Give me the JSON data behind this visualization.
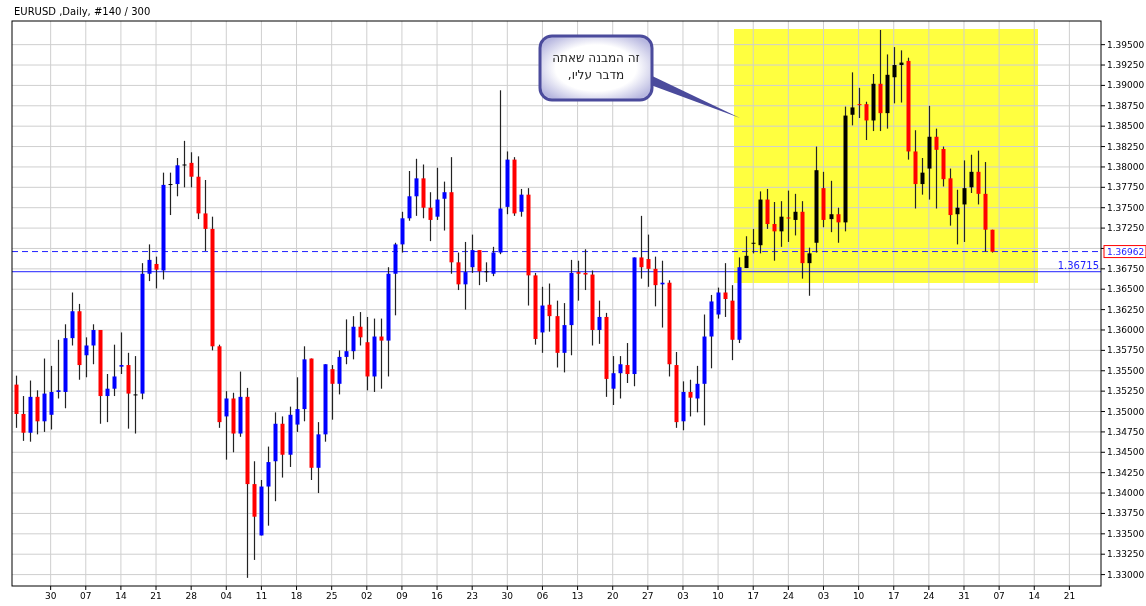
{
  "chart_data": {
    "type": "candlestick",
    "title": "EURUSD ,Daily, #140 / 300",
    "categories": [
      null,
      null,
      null,
      null,
      null,
      "30",
      null,
      null,
      null,
      null,
      "07",
      null,
      null,
      null,
      null,
      "14",
      null,
      null,
      null,
      null,
      "21",
      null,
      null,
      null,
      null,
      "28",
      null,
      null,
      null,
      null,
      "04",
      null,
      null,
      null,
      null,
      "11",
      null,
      null,
      null,
      null,
      "18",
      null,
      null,
      null,
      null,
      "25",
      null,
      null,
      null,
      null,
      "02",
      null,
      null,
      null,
      null,
      "09",
      null,
      null,
      null,
      null,
      "16",
      null,
      null,
      null,
      null,
      "23",
      null,
      null,
      null,
      null,
      "30",
      null,
      null,
      null,
      null,
      "06",
      null,
      null,
      null,
      null,
      "13",
      null,
      null,
      null,
      null,
      "20",
      null,
      null,
      null,
      null,
      "27",
      null,
      null,
      null,
      null,
      "03",
      null,
      null,
      null,
      null,
      "10",
      null,
      null,
      null,
      null,
      "17",
      null,
      null,
      null,
      null,
      "24",
      null,
      null,
      null,
      null,
      "03",
      null,
      null,
      null,
      null,
      "10",
      null,
      null,
      null,
      null,
      "17",
      null,
      null,
      null,
      null,
      "24",
      null,
      null,
      null,
      null,
      "31",
      null,
      null,
      null,
      null,
      "07",
      null,
      null,
      null,
      null,
      "14",
      null,
      null,
      null,
      null,
      "21",
      null,
      null,
      null,
      null
    ],
    "ohlc": [
      [
        1.3533,
        1.3544,
        1.348,
        1.3497
      ],
      [
        1.3497,
        1.3519,
        1.3464,
        1.3474
      ],
      [
        1.3474,
        1.3538,
        1.3463,
        1.3518
      ],
      [
        1.3518,
        1.3526,
        1.3472,
        1.3488
      ],
      [
        1.3488,
        1.3565,
        1.3475,
        1.3522
      ],
      [
        1.3496,
        1.3556,
        1.3478,
        1.3524
      ],
      [
        1.3524,
        1.3588,
        1.3516,
        1.3526
      ],
      [
        1.3524,
        1.3607,
        1.3504,
        1.359
      ],
      [
        1.359,
        1.3646,
        1.3581,
        1.3623
      ],
      [
        1.3623,
        1.3632,
        1.3539,
        1.3557
      ],
      [
        1.3569,
        1.3591,
        1.3542,
        1.3581
      ],
      [
        1.3581,
        1.3607,
        1.3558,
        1.36
      ],
      [
        1.36,
        1.36,
        1.3485,
        1.3519
      ],
      [
        1.3519,
        1.3546,
        1.3487,
        1.3528
      ],
      [
        1.3528,
        1.3582,
        1.3519,
        1.3543
      ],
      [
        1.3555,
        1.3597,
        1.3546,
        1.3557
      ],
      [
        1.3557,
        1.3572,
        1.3479,
        1.3522
      ],
      [
        1.3521,
        1.3568,
        1.3473,
        1.3521
      ],
      [
        1.3522,
        1.3682,
        1.3515,
        1.3669
      ],
      [
        1.3669,
        1.3705,
        1.366,
        1.3686
      ],
      [
        1.3681,
        1.369,
        1.3651,
        1.3674
      ],
      [
        1.3673,
        1.3793,
        1.3662,
        1.3778
      ],
      [
        1.3779,
        1.3793,
        1.3741,
        1.3779
      ],
      [
        1.3779,
        1.3811,
        1.3764,
        1.3802
      ],
      [
        1.3803,
        1.3832,
        1.3775,
        1.3803
      ],
      [
        1.3805,
        1.3818,
        1.3775,
        1.3788
      ],
      [
        1.3788,
        1.3813,
        1.3736,
        1.3743
      ],
      [
        1.3743,
        1.3784,
        1.3697,
        1.3724
      ],
      [
        1.3724,
        1.3739,
        1.3575,
        1.358
      ],
      [
        1.358,
        1.3582,
        1.348,
        1.3487
      ],
      [
        1.3494,
        1.3525,
        1.3441,
        1.3516
      ],
      [
        1.3516,
        1.3523,
        1.345,
        1.3473
      ],
      [
        1.3473,
        1.3549,
        1.3469,
        1.3518
      ],
      [
        1.3518,
        1.3529,
        1.3296,
        1.3411
      ],
      [
        1.3411,
        1.3439,
        1.3318,
        1.3371
      ],
      [
        1.3348,
        1.3416,
        1.3348,
        1.3408
      ],
      [
        1.3408,
        1.3457,
        1.336,
        1.3438
      ],
      [
        1.3439,
        1.3499,
        1.339,
        1.3485
      ],
      [
        1.3485,
        1.3494,
        1.3419,
        1.3447
      ],
      [
        1.3447,
        1.3506,
        1.3432,
        1.3496
      ],
      [
        1.3484,
        1.3542,
        1.3475,
        1.3503
      ],
      [
        1.3503,
        1.358,
        1.3488,
        1.3564
      ],
      [
        1.3565,
        1.3565,
        1.3416,
        1.3431
      ],
      [
        1.3431,
        1.3487,
        1.34,
        1.3472
      ],
      [
        1.3472,
        1.3558,
        1.3463,
        1.3558
      ],
      [
        1.3552,
        1.3557,
        1.349,
        1.3534
      ],
      [
        1.3534,
        1.3575,
        1.3521,
        1.3567
      ],
      [
        1.3567,
        1.3613,
        1.3558,
        1.3574
      ],
      [
        1.3574,
        1.3617,
        1.3564,
        1.3604
      ],
      [
        1.3604,
        1.3622,
        1.3581,
        1.3591
      ],
      [
        1.3585,
        1.3616,
        1.3526,
        1.3543
      ],
      [
        1.3543,
        1.3614,
        1.3524,
        1.3592
      ],
      [
        1.3592,
        1.3614,
        1.3528,
        1.3587
      ],
      [
        1.3587,
        1.3677,
        1.3543,
        1.3669
      ],
      [
        1.3669,
        1.3707,
        1.3618,
        1.3705
      ],
      [
        1.3705,
        1.3745,
        1.3695,
        1.3737
      ],
      [
        1.3737,
        1.3795,
        1.3734,
        1.3764
      ],
      [
        1.3764,
        1.381,
        1.374,
        1.3786
      ],
      [
        1.3786,
        1.3803,
        1.3737,
        1.375
      ],
      [
        1.375,
        1.3769,
        1.3709,
        1.3735
      ],
      [
        1.3739,
        1.3799,
        1.3735,
        1.376
      ],
      [
        1.3761,
        1.3782,
        1.3722,
        1.3769
      ],
      [
        1.3769,
        1.3812,
        1.3669,
        1.3683
      ],
      [
        1.3683,
        1.3695,
        1.3649,
        1.3656
      ],
      [
        1.3656,
        1.3708,
        1.3625,
        1.3671
      ],
      [
        1.3677,
        1.3717,
        1.367,
        1.3698
      ],
      [
        1.3698,
        1.3698,
        1.3655,
        1.3672
      ],
      [
        1.3672,
        1.3683,
        1.3659,
        1.3672
      ],
      [
        1.3669,
        1.3702,
        1.3666,
        1.3695
      ],
      [
        1.3695,
        1.3894,
        1.3693,
        1.3749
      ],
      [
        1.3751,
        1.3819,
        1.3742,
        1.3809
      ],
      [
        1.3809,
        1.3812,
        1.374,
        1.3743
      ],
      [
        1.3745,
        1.3773,
        1.3739,
        1.3766
      ],
      [
        1.3766,
        1.3774,
        1.363,
        1.3667
      ],
      [
        1.3667,
        1.367,
        1.3582,
        1.3589
      ],
      [
        1.3597,
        1.3653,
        1.3572,
        1.363
      ],
      [
        1.3631,
        1.3657,
        1.3598,
        1.3617
      ],
      [
        1.3617,
        1.3636,
        1.3554,
        1.3572
      ],
      [
        1.3572,
        1.3633,
        1.3548,
        1.3606
      ],
      [
        1.3606,
        1.3686,
        1.3569,
        1.367
      ],
      [
        1.3671,
        1.3685,
        1.3636,
        1.3669
      ],
      [
        1.367,
        1.3699,
        1.3649,
        1.3668
      ],
      [
        1.3668,
        1.3673,
        1.3581,
        1.36
      ],
      [
        1.36,
        1.3636,
        1.3583,
        1.3616
      ],
      [
        1.3616,
        1.3621,
        1.3518,
        1.354
      ],
      [
        1.3528,
        1.3568,
        1.3508,
        1.3547
      ],
      [
        1.3547,
        1.3568,
        1.3516,
        1.3558
      ],
      [
        1.3557,
        1.3584,
        1.3535,
        1.3546
      ],
      [
        1.3546,
        1.3689,
        1.3531,
        1.3689
      ],
      [
        1.3689,
        1.374,
        1.3663,
        1.3677
      ],
      [
        1.3687,
        1.3717,
        1.3653,
        1.3675
      ],
      [
        1.3675,
        1.369,
        1.3629,
        1.3655
      ],
      [
        1.3656,
        1.3685,
        1.3603,
        1.3658
      ],
      [
        1.3658,
        1.3661,
        1.3543,
        1.3558
      ],
      [
        1.3557,
        1.3573,
        1.348,
        1.3487
      ],
      [
        1.3488,
        1.3537,
        1.3477,
        1.3524
      ],
      [
        1.3524,
        1.3539,
        1.3494,
        1.3517
      ],
      [
        1.3516,
        1.3556,
        1.3499,
        1.3534
      ],
      [
        1.3534,
        1.3619,
        1.3483,
        1.3592
      ],
      [
        1.3592,
        1.3643,
        1.3553,
        1.3635
      ],
      [
        1.3619,
        1.3652,
        1.3614,
        1.3646
      ],
      [
        1.3646,
        1.3682,
        1.3616,
        1.3638
      ],
      [
        1.3636,
        1.3655,
        1.3563,
        1.3588
      ],
      [
        1.3588,
        1.3689,
        1.3584,
        1.3677
      ],
      [
        1.3676,
        1.3715,
        1.3676,
        1.3691
      ],
      [
        1.3706,
        1.3724,
        1.3694,
        1.3707
      ],
      [
        1.3704,
        1.377,
        1.3694,
        1.376
      ],
      [
        1.376,
        1.3773,
        1.3724,
        1.373
      ],
      [
        1.373,
        1.3757,
        1.3685,
        1.3721
      ],
      [
        1.3721,
        1.3758,
        1.3702,
        1.3739
      ],
      [
        1.3738,
        1.3771,
        1.3708,
        1.3737
      ],
      [
        1.3735,
        1.3767,
        1.3716,
        1.3745
      ],
      [
        1.3745,
        1.3758,
        1.3663,
        1.3682
      ],
      [
        1.3682,
        1.3701,
        1.3642,
        1.3694
      ],
      [
        1.3707,
        1.3825,
        1.3695,
        1.3796
      ],
      [
        1.3774,
        1.3794,
        1.3726,
        1.3735
      ],
      [
        1.3736,
        1.3783,
        1.372,
        1.3742
      ],
      [
        1.3742,
        1.375,
        1.3707,
        1.3732
      ],
      [
        1.3732,
        1.3874,
        1.3721,
        1.3863
      ],
      [
        1.3864,
        1.3916,
        1.3851,
        1.3873
      ],
      [
        1.3877,
        1.3897,
        1.386,
        1.3877
      ],
      [
        1.3877,
        1.388,
        1.3833,
        1.3857
      ],
      [
        1.3857,
        1.3914,
        1.3844,
        1.3902
      ],
      [
        1.3902,
        1.3968,
        1.3844,
        1.3866
      ],
      [
        1.3866,
        1.3938,
        1.3847,
        1.3913
      ],
      [
        1.391,
        1.3947,
        1.3878,
        1.3925
      ],
      [
        1.3925,
        1.3943,
        1.3879,
        1.3928
      ],
      [
        1.393,
        1.3934,
        1.3809,
        1.3819
      ],
      [
        1.3819,
        1.3845,
        1.3749,
        1.3779
      ],
      [
        1.3779,
        1.3811,
        1.3766,
        1.3793
      ],
      [
        1.3798,
        1.3875,
        1.376,
        1.3837
      ],
      [
        1.3837,
        1.3847,
        1.3749,
        1.3821
      ],
      [
        1.3822,
        1.3825,
        1.3776,
        1.3785
      ],
      [
        1.3786,
        1.3798,
        1.3728,
        1.3741
      ],
      [
        1.3742,
        1.3772,
        1.3705,
        1.375
      ],
      [
        1.3754,
        1.3808,
        1.3708,
        1.3774
      ],
      [
        1.3775,
        1.3815,
        1.3768,
        1.3794
      ],
      [
        1.3794,
        1.382,
        1.3754,
        1.3767
      ],
      [
        1.3767,
        1.3806,
        1.3696,
        1.3723
      ],
      [
        1.3723,
        1.3723,
        1.3695,
        1.3696
      ],
      null,
      null,
      null,
      null,
      null,
      null,
      null,
      null,
      null,
      null,
      null,
      null,
      null,
      null,
      null
    ],
    "colors": [
      "#ff0000",
      "#ff0000",
      "#0000ff",
      "#ff0000",
      "#0000ff",
      "#0000ff",
      "#0000ff",
      "#0000ff",
      "#0000ff",
      "#ff0000",
      "#0000ff",
      "#0000ff",
      "#ff0000",
      "#0000ff",
      "#0000ff",
      "#0000ff",
      "#ff0000",
      "#000000",
      "#0000ff",
      "#0000ff",
      "#ff0000",
      "#0000ff",
      "#000000",
      "#0000ff",
      "#000000",
      "#ff0000",
      "#ff0000",
      "#ff0000",
      "#ff0000",
      "#ff0000",
      "#0000ff",
      "#ff0000",
      "#0000ff",
      "#ff0000",
      "#ff0000",
      "#0000ff",
      "#0000ff",
      "#0000ff",
      "#ff0000",
      "#0000ff",
      "#0000ff",
      "#0000ff",
      "#ff0000",
      "#0000ff",
      "#0000ff",
      "#ff0000",
      "#0000ff",
      "#0000ff",
      "#0000ff",
      "#ff0000",
      "#ff0000",
      "#0000ff",
      "#ff0000",
      "#0000ff",
      "#0000ff",
      "#0000ff",
      "#0000ff",
      "#0000ff",
      "#ff0000",
      "#ff0000",
      "#0000ff",
      "#0000ff",
      "#ff0000",
      "#ff0000",
      "#0000ff",
      "#0000ff",
      "#ff0000",
      "#000000",
      "#0000ff",
      "#0000ff",
      "#0000ff",
      "#ff0000",
      "#0000ff",
      "#ff0000",
      "#ff0000",
      "#0000ff",
      "#ff0000",
      "#ff0000",
      "#0000ff",
      "#0000ff",
      "#ff0000",
      "#ff0000",
      "#ff0000",
      "#0000ff",
      "#ff0000",
      "#0000ff",
      "#0000ff",
      "#ff0000",
      "#0000ff",
      "#ff0000",
      "#ff0000",
      "#ff0000",
      "#0000ff",
      "#ff0000",
      "#ff0000",
      "#0000ff",
      "#ff0000",
      "#0000ff",
      "#0000ff",
      "#0000ff",
      "#0000ff",
      "#ff0000",
      "#ff0000",
      "#0000ff",
      "#000000",
      "#000000",
      "#000000",
      "#ff0000",
      "#ff0000",
      "#000000",
      "#ff0000",
      "#000000",
      "#ff0000",
      "#000000",
      "#000000",
      "#ff0000",
      "#000000",
      "#ff0000",
      "#000000",
      "#000000",
      "#ff0000",
      "#ff0000",
      "#000000",
      "#ff0000",
      "#000000",
      "#000000",
      "#000000",
      "#ff0000",
      "#ff0000",
      "#000000",
      "#000000",
      "#ff0000",
      "#ff0000",
      "#ff0000",
      "#000000",
      "#000000",
      "#000000",
      "#ff0000",
      "#ff0000",
      "#ff0000",
      null,
      null,
      null,
      null,
      null,
      null,
      null,
      null,
      null,
      null,
      null,
      null,
      null,
      null,
      null
    ],
    "ylim": [
      1.3286,
      1.3979
    ],
    "yticks": [
      {
        "value": 1.33,
        "label": "1.33000"
      },
      {
        "value": 1.3325,
        "label": "1.33250"
      },
      {
        "value": 1.335,
        "label": "1.33500"
      },
      {
        "value": 1.3375,
        "label": "1.33750"
      },
      {
        "value": 1.34,
        "label": "1.34000"
      },
      {
        "value": 1.3425,
        "label": "1.34250"
      },
      {
        "value": 1.345,
        "label": "1.34500"
      },
      {
        "value": 1.3475,
        "label": "1.34750"
      },
      {
        "value": 1.35,
        "label": "1.35000"
      },
      {
        "value": 1.3525,
        "label": "1.35250"
      },
      {
        "value": 1.355,
        "label": "1.35500"
      },
      {
        "value": 1.3575,
        "label": "1.35750"
      },
      {
        "value": 1.36,
        "label": "1.36000"
      },
      {
        "value": 1.3625,
        "label": "1.36250"
      },
      {
        "value": 1.365,
        "label": "1.36500"
      },
      {
        "value": 1.3675,
        "label": "1.36750"
      },
      {
        "value": 1.37,
        "label": null
      },
      {
        "value": 1.3725,
        "label": "1.37250"
      },
      {
        "value": 1.375,
        "label": "1.37500"
      },
      {
        "value": 1.3775,
        "label": "1.37750"
      },
      {
        "value": 1.38,
        "label": "1.38000"
      },
      {
        "value": 1.3825,
        "label": "1.38250"
      },
      {
        "value": 1.385,
        "label": "1.38500"
      },
      {
        "value": 1.3875,
        "label": "1.38750"
      },
      {
        "value": 1.39,
        "label": "1.39000"
      },
      {
        "value": 1.3925,
        "label": "1.39250"
      },
      {
        "value": 1.395,
        "label": "1.39500"
      }
    ],
    "grid": true,
    "ref_lines": [
      {
        "axis": "y",
        "value": 1.36962,
        "label": "1.36962",
        "color": "#2020ff",
        "line_style": "dashed"
      },
      {
        "axis": "y",
        "value": 1.36715,
        "label": "1.36715",
        "color": "#2020ff",
        "line_style": "solid"
      }
    ],
    "annotations": [
      "זה המבנה שאתה\nמדבר עליו,"
    ]
  }
}
